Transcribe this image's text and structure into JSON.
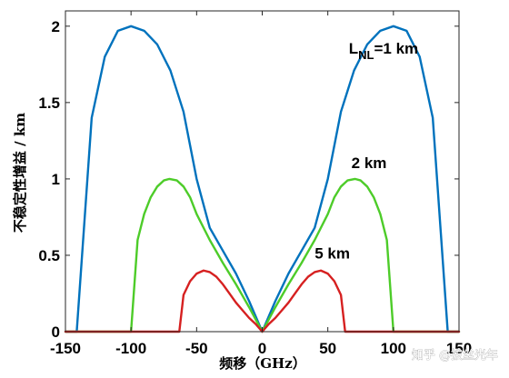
{
  "chart_data": {
    "type": "line",
    "xlabel": "频移（GHz）",
    "ylabel": "不稳定性增益 / km",
    "xlim": [
      -150,
      150
    ],
    "ylim": [
      0,
      2.1
    ],
    "xticks": [
      -150,
      -100,
      -50,
      0,
      50,
      100,
      150
    ],
    "yticks": [
      0,
      0.5,
      1,
      1.5,
      2
    ],
    "grid": false,
    "series": [
      {
        "name": "L_NL=1 km",
        "color": "#0072BD",
        "x": [
          -150,
          -141.4,
          -130,
          -120,
          -110,
          -100,
          -90,
          -80,
          -70,
          -60,
          -50,
          -40,
          -30,
          -20,
          -10,
          0,
          10,
          20,
          30,
          40,
          50,
          60,
          70,
          80,
          90,
          100,
          110,
          120,
          130,
          141.4,
          150
        ],
        "y": [
          0,
          0,
          1.4,
          1.8,
          1.97,
          2.0,
          1.97,
          1.88,
          1.71,
          1.44,
          1.0,
          0.68,
          0.53,
          0.38,
          0.2,
          0,
          0.2,
          0.38,
          0.53,
          0.68,
          1.0,
          1.44,
          1.71,
          1.88,
          1.97,
          2.0,
          1.97,
          1.8,
          1.4,
          0,
          0
        ]
      },
      {
        "name": "2 km",
        "color": "#4DCC29",
        "x": [
          -150,
          -100,
          -95,
          -90,
          -85,
          -80,
          -75,
          -70.7,
          -65,
          -60,
          -55,
          -50,
          -40,
          -30,
          -20,
          -10,
          0,
          10,
          20,
          30,
          40,
          50,
          55,
          60,
          65,
          70.7,
          75,
          80,
          85,
          90,
          95,
          100,
          150
        ],
        "y": [
          0,
          0,
          0.6,
          0.77,
          0.88,
          0.95,
          0.99,
          1.0,
          0.99,
          0.95,
          0.88,
          0.77,
          0.6,
          0.45,
          0.31,
          0.16,
          0,
          0.16,
          0.31,
          0.45,
          0.6,
          0.77,
          0.88,
          0.95,
          0.99,
          1.0,
          0.99,
          0.95,
          0.88,
          0.77,
          0.6,
          0,
          0
        ]
      },
      {
        "name": "5 km",
        "color": "#D62020",
        "x": [
          -150,
          -63.2,
          -60,
          -55,
          -50,
          -44.7,
          -40,
          -35,
          -30,
          -25,
          -20,
          -15,
          -10,
          -5,
          0,
          5,
          10,
          15,
          20,
          25,
          30,
          35,
          40,
          44.7,
          50,
          55,
          60,
          63.2,
          150
        ],
        "y": [
          0,
          0,
          0.24,
          0.33,
          0.38,
          0.4,
          0.39,
          0.36,
          0.31,
          0.25,
          0.19,
          0.14,
          0.09,
          0.05,
          0,
          0.05,
          0.09,
          0.14,
          0.19,
          0.25,
          0.31,
          0.36,
          0.39,
          0.4,
          0.38,
          0.33,
          0.24,
          0,
          0
        ]
      }
    ],
    "annotations": [
      {
        "text_main": "L",
        "text_sub": "NL",
        "text_rest": "=1 km",
        "x": 66,
        "y": 1.82
      },
      {
        "text": "2 km",
        "x": 68,
        "y": 1.07
      },
      {
        "text": "5 km",
        "x": 40,
        "y": 0.48
      }
    ]
  },
  "watermark": "知乎 @拔丝光年"
}
